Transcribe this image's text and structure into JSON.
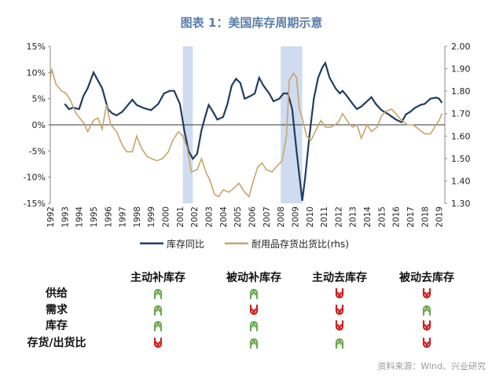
{
  "title": "图表 1：美国库存周期示意",
  "chart_data": {
    "type": "line",
    "title": "图表 1：美国库存周期示意",
    "x_ticks": [
      "1992",
      "1993",
      "1994",
      "1995",
      "1996",
      "1997",
      "1998",
      "1999",
      "2000",
      "2001",
      "2002",
      "2003",
      "2004",
      "2005",
      "2006",
      "2007",
      "2008",
      "2009",
      "2010",
      "2011",
      "2012",
      "2013",
      "2014",
      "2015",
      "2016",
      "2017",
      "2018",
      "2019"
    ],
    "xlim": [
      1992,
      2019.4
    ],
    "y_left": {
      "ticks": [
        "15%",
        "10%",
        "5%",
        "0%",
        "-5%",
        "-10%",
        "-15%"
      ],
      "ylim": [
        -15,
        15
      ]
    },
    "y_right": {
      "ticks": [
        "2.00",
        "1.90",
        "1.80",
        "1.70",
        "1.60",
        "1.50",
        "1.40",
        "1.30"
      ],
      "ylim": [
        1.3,
        2.0
      ]
    },
    "shaded_periods": [
      [
        2001.2,
        2001.9
      ],
      [
        2008.0,
        2009.5
      ]
    ],
    "colors": {
      "series1": "#1f3d63",
      "series2": "#c8a46a",
      "shade": "#cfdcf0"
    },
    "legend_position": "bottom",
    "series": [
      {
        "name": "库存同比",
        "axis": "left",
        "points": [
          [
            1993.0,
            4
          ],
          [
            1993.3,
            3
          ],
          [
            1993.6,
            3.3
          ],
          [
            1994.0,
            3
          ],
          [
            1994.3,
            5.5
          ],
          [
            1994.6,
            7
          ],
          [
            1995.0,
            10
          ],
          [
            1995.3,
            8.5
          ],
          [
            1995.6,
            7
          ],
          [
            1996.0,
            3
          ],
          [
            1996.3,
            2.2
          ],
          [
            1996.6,
            1.8
          ],
          [
            1997.0,
            2.5
          ],
          [
            1997.3,
            3.5
          ],
          [
            1997.7,
            4.8
          ],
          [
            1998.0,
            3.8
          ],
          [
            1998.5,
            3.2
          ],
          [
            1999.0,
            2.8
          ],
          [
            1999.5,
            4
          ],
          [
            1999.9,
            6
          ],
          [
            2000.3,
            6.5
          ],
          [
            2000.6,
            6.5
          ],
          [
            2001.0,
            4
          ],
          [
            2001.3,
            -1
          ],
          [
            2001.6,
            -5
          ],
          [
            2001.9,
            -6.5
          ],
          [
            2002.2,
            -5.5
          ],
          [
            2002.5,
            -1
          ],
          [
            2002.8,
            2
          ],
          [
            2003.0,
            3.8
          ],
          [
            2003.3,
            2.5
          ],
          [
            2003.6,
            1
          ],
          [
            2004.0,
            1.5
          ],
          [
            2004.3,
            4
          ],
          [
            2004.6,
            7.5
          ],
          [
            2004.9,
            8.8
          ],
          [
            2005.2,
            8
          ],
          [
            2005.5,
            5
          ],
          [
            2005.9,
            5.5
          ],
          [
            2006.2,
            6
          ],
          [
            2006.5,
            9
          ],
          [
            2006.8,
            7.5
          ],
          [
            2007.2,
            6
          ],
          [
            2007.5,
            4.5
          ],
          [
            2007.9,
            5
          ],
          [
            2008.2,
            6
          ],
          [
            2008.5,
            6
          ],
          [
            2008.8,
            3
          ],
          [
            2009.1,
            -5
          ],
          [
            2009.5,
            -14.5
          ],
          [
            2009.7,
            -10
          ],
          [
            2010.0,
            -2
          ],
          [
            2010.3,
            5
          ],
          [
            2010.6,
            9
          ],
          [
            2010.9,
            11
          ],
          [
            2011.1,
            11.8
          ],
          [
            2011.4,
            9
          ],
          [
            2011.8,
            7
          ],
          [
            2012.1,
            6
          ],
          [
            2012.3,
            6.5
          ],
          [
            2012.6,
            5.5
          ],
          [
            2013.0,
            4
          ],
          [
            2013.3,
            3
          ],
          [
            2013.6,
            3.5
          ],
          [
            2014.0,
            4.5
          ],
          [
            2014.3,
            5.3
          ],
          [
            2014.6,
            4
          ],
          [
            2015.0,
            2.8
          ],
          [
            2015.5,
            2
          ],
          [
            2016.0,
            1
          ],
          [
            2016.4,
            0.5
          ],
          [
            2016.7,
            2
          ],
          [
            2017.0,
            2.5
          ],
          [
            2017.3,
            3.2
          ],
          [
            2017.7,
            3.8
          ],
          [
            2018.0,
            4
          ],
          [
            2018.4,
            5
          ],
          [
            2018.8,
            5.2
          ],
          [
            2019.0,
            5
          ],
          [
            2019.2,
            4.2
          ]
        ]
      },
      {
        "name": "耐用品存货出货比(rhs)",
        "axis": "right",
        "points": [
          [
            1992.0,
            1.85
          ],
          [
            1992.1,
            1.9
          ],
          [
            1992.4,
            1.83
          ],
          [
            1992.8,
            1.8
          ],
          [
            1993.1,
            1.79
          ],
          [
            1993.4,
            1.76
          ],
          [
            1993.8,
            1.7
          ],
          [
            1994.3,
            1.66
          ],
          [
            1994.6,
            1.62
          ],
          [
            1995.0,
            1.67
          ],
          [
            1995.3,
            1.68
          ],
          [
            1995.6,
            1.63
          ],
          [
            1995.9,
            1.74
          ],
          [
            1996.2,
            1.65
          ],
          [
            1996.6,
            1.62
          ],
          [
            1997.0,
            1.56
          ],
          [
            1997.3,
            1.53
          ],
          [
            1997.7,
            1.53
          ],
          [
            1998.0,
            1.6
          ],
          [
            1998.3,
            1.55
          ],
          [
            1998.7,
            1.51
          ],
          [
            1999.0,
            1.5
          ],
          [
            1999.4,
            1.49
          ],
          [
            1999.8,
            1.5
          ],
          [
            2000.2,
            1.53
          ],
          [
            2000.5,
            1.58
          ],
          [
            2000.9,
            1.62
          ],
          [
            2001.2,
            1.6
          ],
          [
            2001.5,
            1.55
          ],
          [
            2001.8,
            1.44
          ],
          [
            2002.2,
            1.45
          ],
          [
            2002.5,
            1.5
          ],
          [
            2002.8,
            1.44
          ],
          [
            2003.1,
            1.4
          ],
          [
            2003.4,
            1.34
          ],
          [
            2003.7,
            1.33
          ],
          [
            2004.0,
            1.36
          ],
          [
            2004.4,
            1.35
          ],
          [
            2004.8,
            1.37
          ],
          [
            2005.1,
            1.39
          ],
          [
            2005.5,
            1.35
          ],
          [
            2005.8,
            1.33
          ],
          [
            2006.1,
            1.4
          ],
          [
            2006.4,
            1.46
          ],
          [
            2006.7,
            1.48
          ],
          [
            2007.0,
            1.45
          ],
          [
            2007.4,
            1.44
          ],
          [
            2007.8,
            1.47
          ],
          [
            2008.1,
            1.49
          ],
          [
            2008.4,
            1.6
          ],
          [
            2008.6,
            1.85
          ],
          [
            2008.9,
            1.88
          ],
          [
            2009.1,
            1.86
          ],
          [
            2009.3,
            1.72
          ],
          [
            2009.5,
            1.68
          ],
          [
            2009.8,
            1.6
          ],
          [
            2010.1,
            1.58
          ],
          [
            2010.4,
            1.62
          ],
          [
            2010.8,
            1.67
          ],
          [
            2011.1,
            1.64
          ],
          [
            2011.5,
            1.64
          ],
          [
            2012.0,
            1.66
          ],
          [
            2012.3,
            1.7
          ],
          [
            2012.7,
            1.66
          ],
          [
            2013.0,
            1.64
          ],
          [
            2013.3,
            1.65
          ],
          [
            2013.6,
            1.59
          ],
          [
            2014.0,
            1.65
          ],
          [
            2014.3,
            1.62
          ],
          [
            2014.7,
            1.64
          ],
          [
            2015.0,
            1.69
          ],
          [
            2015.3,
            1.71
          ],
          [
            2015.7,
            1.72
          ],
          [
            2016.0,
            1.7
          ],
          [
            2016.4,
            1.67
          ],
          [
            2016.8,
            1.65
          ],
          [
            2017.2,
            1.65
          ],
          [
            2017.6,
            1.63
          ],
          [
            2018.0,
            1.61
          ],
          [
            2018.4,
            1.61
          ],
          [
            2018.8,
            1.65
          ],
          [
            2019.0,
            1.67
          ],
          [
            2019.2,
            1.7
          ]
        ]
      }
    ]
  },
  "table": {
    "columns": [
      "主动补库存",
      "被动补库存",
      "主动去库存",
      "被动去库存"
    ],
    "rows": [
      {
        "label": "供给",
        "values": [
          "up",
          "up",
          "down",
          "down"
        ]
      },
      {
        "label": "需求",
        "values": [
          "up",
          "down",
          "down",
          "up"
        ]
      },
      {
        "label": "库存",
        "values": [
          "up",
          "up",
          "down",
          "down"
        ]
      },
      {
        "label": "存货/出货比",
        "values": [
          "down",
          "up",
          "up",
          "down"
        ]
      }
    ],
    "colors": {
      "up": "#6aa84f",
      "down": "#cc1f1f"
    }
  },
  "source": "资料来源：Wind、兴业研究"
}
